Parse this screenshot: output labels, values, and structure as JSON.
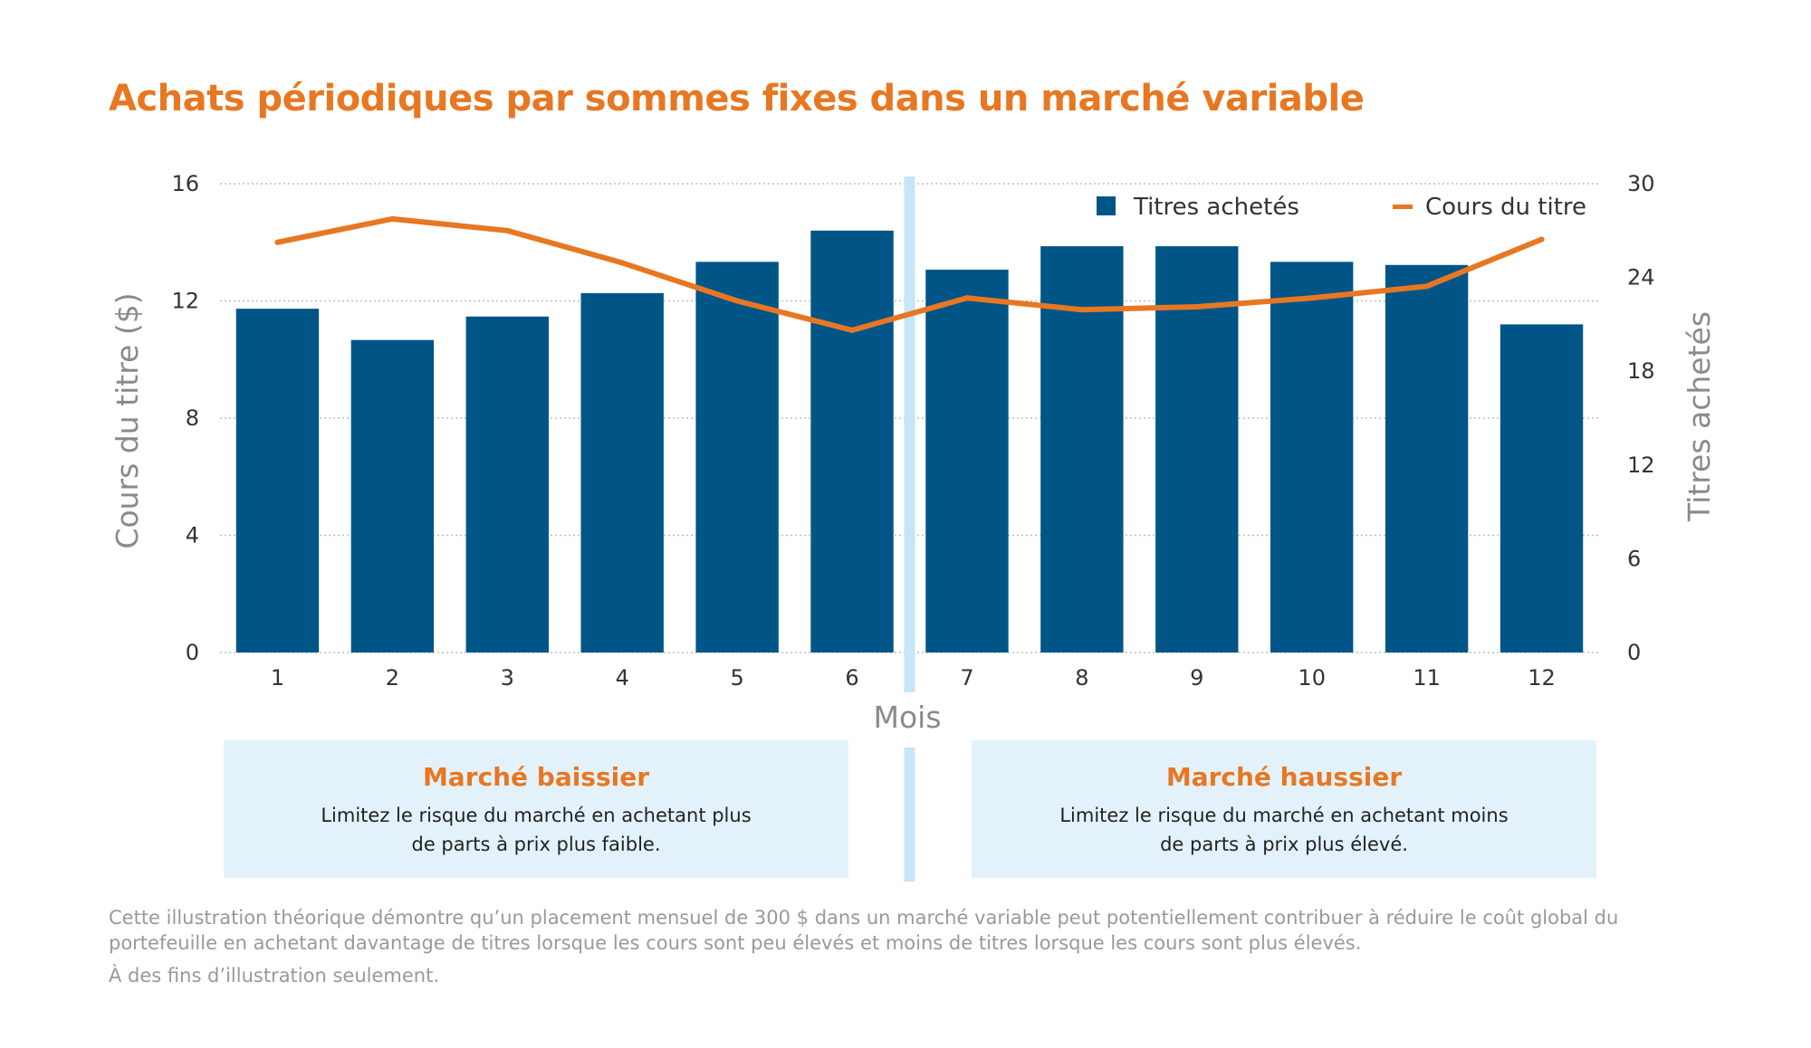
{
  "title": "Achats périodiques par sommes fixes dans un marché variable",
  "colors": {
    "title": "#e87722",
    "bars": "#005587",
    "line": "#e87722",
    "divider": "#c5e6f6",
    "panel_bg": "#e3f2fa",
    "grid": "#bdbdbd"
  },
  "chart_data": {
    "type": "bar+line",
    "categories": [
      "1",
      "2",
      "3",
      "4",
      "5",
      "6",
      "7",
      "8",
      "9",
      "10",
      "11",
      "12"
    ],
    "xlabel": "Mois",
    "series": [
      {
        "name": "Titres achetés",
        "type": "bar",
        "axis": "right",
        "values": [
          22,
          20,
          21.5,
          23,
          25,
          27,
          24.5,
          26,
          26,
          25,
          24.8,
          21
        ]
      },
      {
        "name": "Cours du titre",
        "type": "line",
        "axis": "left",
        "values": [
          14,
          14.8,
          14.4,
          13.3,
          12,
          11,
          12.1,
          11.7,
          11.8,
          12.1,
          12.5,
          14.1
        ]
      }
    ],
    "y_left": {
      "label": "Cours du titre ($)",
      "range": [
        0,
        16
      ],
      "ticks": [
        0,
        4,
        8,
        12,
        16
      ]
    },
    "y_right": {
      "label": "Titres achetés",
      "range": [
        0,
        30
      ],
      "ticks": [
        0,
        6,
        12,
        18,
        24,
        30
      ]
    },
    "grid": true,
    "legend_position": "top-right",
    "divider_after_category": "6"
  },
  "panels": {
    "left": {
      "title": "Marché baissier",
      "line1": "Limitez le risque du marché en achetant plus",
      "line2": "de parts à prix plus faible."
    },
    "right": {
      "title": "Marché haussier",
      "line1": "Limitez le risque du marché en achetant moins",
      "line2": "de parts à prix plus élevé."
    }
  },
  "footnotes": {
    "main": "Cette illustration théorique démontre qu’un placement mensuel de 300 $ dans un marché variable peut potentiellement contribuer à réduire le coût global du portefeuille en achetant davantage de titres lorsque les cours sont peu élevés et moins de titres lorsque les cours sont plus élevés.",
    "disclaimer": "À des fins d’illustration seulement."
  }
}
